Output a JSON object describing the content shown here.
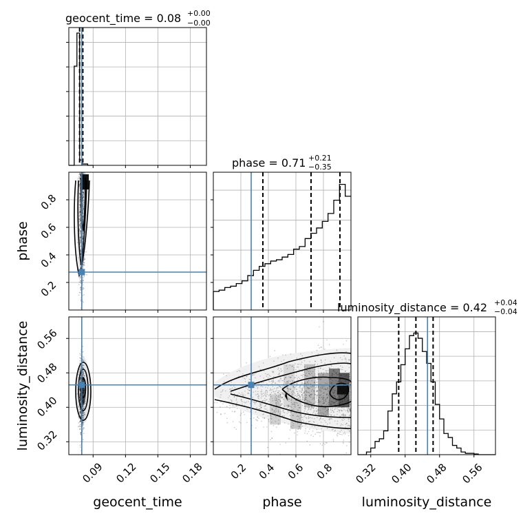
{
  "chart_data": {
    "type": "corner",
    "parameters": [
      "geocent_time",
      "phase",
      "luminosity_distance"
    ],
    "colors": {
      "truth": "#4682b4",
      "hist": "#000000",
      "grid": "#b0b0b0",
      "points": "#000000"
    },
    "panels": {
      "geocent_time": {
        "title": {
          "main": "geocent_time = 0.08",
          "plus": "+0.00",
          "minus": "−0.00"
        },
        "xlim": [
          0.0675,
          0.195
        ],
        "median": 0.08,
        "q_low": 0.0775,
        "q_high": 0.0805,
        "truth": 0.0795,
        "hist_bins": [
          0.0675,
          0.07,
          0.0725,
          0.075,
          0.0775,
          0.08,
          0.0825,
          0.085,
          0.0875,
          0.09
        ],
        "hist_counts": [
          0.0,
          0.0,
          0.75,
          1.0,
          0.04,
          0.01,
          0.01,
          0.0,
          0.0
        ]
      },
      "phase": {
        "title": {
          "main": "phase = 0.71",
          "plus": "+0.21",
          "minus": "−0.35"
        },
        "xlim": [
          0.0,
          1.0
        ],
        "xticks": [
          "0.2",
          "0.4",
          "0.6",
          "0.8"
        ],
        "median": 0.71,
        "q_low": 0.36,
        "q_high": 0.92,
        "truth": 0.275,
        "hist_counts": [
          0.14,
          0.15,
          0.17,
          0.18,
          0.2,
          0.22,
          0.26,
          0.3,
          0.33,
          0.35,
          0.37,
          0.38,
          0.4,
          0.42,
          0.46,
          0.48,
          0.54,
          0.58,
          0.62,
          0.67,
          0.73,
          0.83,
          0.95,
          0.86
        ]
      },
      "luminosity_distance": {
        "title": {
          "main": "luminosity_distance = 0.42",
          "plus": "+0.04",
          "minus": "−0.04"
        },
        "xlim": [
          0.29,
          0.61
        ],
        "xticks": [
          "0.32",
          "0.40",
          "0.48",
          "0.56"
        ],
        "median": 0.425,
        "q_low": 0.385,
        "q_high": 0.465,
        "truth": 0.452,
        "hist_bins": [
          0.29,
          0.3,
          0.31,
          0.32,
          0.33,
          0.34,
          0.35,
          0.36,
          0.37,
          0.38,
          0.39,
          0.4,
          0.41,
          0.42,
          0.43,
          0.44,
          0.45,
          0.46,
          0.47,
          0.48,
          0.49,
          0.5,
          0.51,
          0.52,
          0.53,
          0.54,
          0.55,
          0.56,
          0.57,
          0.58,
          0.59,
          0.6,
          0.61
        ],
        "hist_counts": [
          0.0,
          0.0,
          0.02,
          0.05,
          0.1,
          0.12,
          0.18,
          0.33,
          0.46,
          0.55,
          0.68,
          0.8,
          0.9,
          0.92,
          0.88,
          0.78,
          0.69,
          0.55,
          0.38,
          0.27,
          0.16,
          0.13,
          0.07,
          0.05,
          0.02,
          0.01,
          0.01,
          0.005,
          0.0,
          0.0,
          0.0,
          0.0
        ]
      }
    },
    "pairs": {
      "phase_vs_geocent_time": {
        "ylim": [
          0.0,
          1.0
        ],
        "yticks": [
          "0.2",
          "0.4",
          "0.6",
          "0.8"
        ],
        "truth_x": 0.0795,
        "truth_y": 0.275
      },
      "luminosity_distance_vs_geocent_time": {
        "ylim": [
          0.29,
          0.61
        ],
        "yticks": [
          "0.32",
          "0.40",
          "0.48",
          "0.56"
        ],
        "xticks": [
          "0.09",
          "0.12",
          "0.15",
          "0.18"
        ],
        "truth_x": 0.0795,
        "truth_y": 0.452
      },
      "luminosity_distance_vs_phase": {
        "truth_x": 0.275,
        "truth_y": 0.452
      }
    },
    "axis_labels": {
      "x": [
        "geocent_time",
        "phase",
        "luminosity_distance"
      ],
      "y": [
        "phase",
        "luminosity_distance"
      ]
    },
    "grid": true
  }
}
